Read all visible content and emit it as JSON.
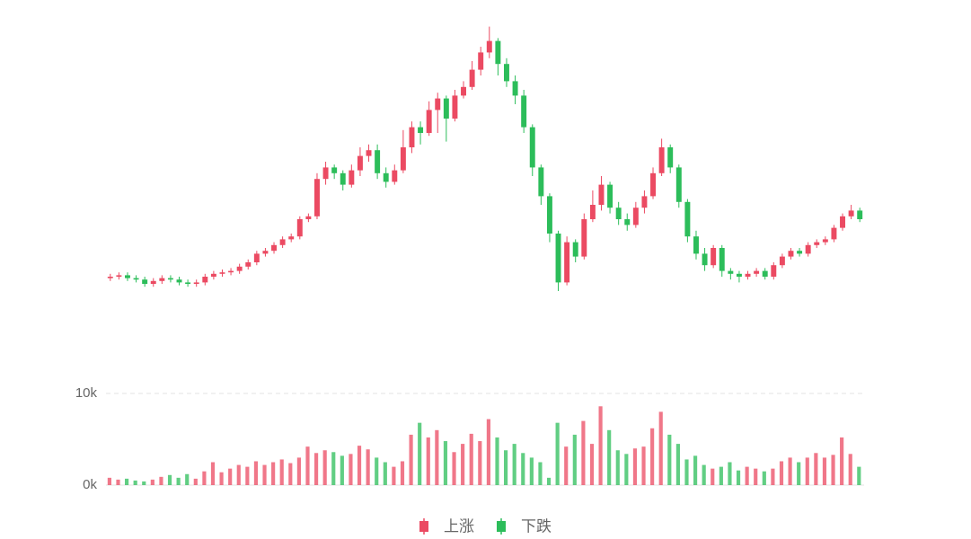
{
  "chart_data": {
    "type": "candlestick",
    "open": [
      9.5,
      10,
      10.5,
      9.5,
      9,
      7.5,
      8.5,
      9.5,
      9,
      8,
      7.5,
      8,
      10,
      11,
      11.5,
      12,
      13.5,
      15,
      18,
      19,
      21,
      23,
      24,
      30,
      31,
      44,
      48,
      46,
      42,
      47,
      52,
      54,
      46,
      43,
      47,
      55,
      62,
      60,
      68,
      72,
      65,
      73,
      76,
      82,
      88,
      92,
      84,
      78,
      73,
      62,
      48,
      38,
      25,
      8,
      22,
      17,
      30,
      35,
      42,
      34,
      30,
      28,
      34,
      38,
      46,
      55,
      48,
      36,
      24,
      18,
      14,
      20,
      12,
      11,
      10,
      11,
      12,
      10,
      14,
      17,
      19,
      18,
      21,
      22,
      23,
      27,
      31,
      33
    ],
    "close": [
      10,
      10.5,
      9.5,
      9,
      7.5,
      8.5,
      9.5,
      9,
      8,
      7.5,
      8,
      10,
      11,
      11.5,
      12,
      13.5,
      15,
      18,
      19,
      21,
      23,
      24,
      30,
      31,
      44,
      48,
      46,
      42,
      47,
      52,
      54,
      46,
      43,
      47,
      55,
      62,
      60,
      68,
      72,
      65,
      73,
      76,
      82,
      88,
      92,
      84,
      78,
      73,
      62,
      48,
      38,
      25,
      8,
      22,
      17,
      30,
      35,
      42,
      34,
      30,
      28,
      34,
      38,
      46,
      55,
      48,
      36,
      24,
      18,
      14,
      20,
      12,
      11,
      10,
      11,
      12,
      10,
      14,
      17,
      19,
      18,
      21,
      22,
      23,
      27,
      31,
      33,
      30
    ],
    "low": [
      8.5,
      9,
      8.5,
      8,
      6.5,
      6.5,
      7.5,
      8,
      7,
      6.5,
      6.5,
      7,
      9,
      10,
      10.5,
      11,
      12.5,
      14,
      17,
      18,
      20,
      22,
      23,
      29,
      30,
      42,
      44,
      40,
      41,
      45,
      50,
      44,
      41,
      42,
      46,
      53,
      56,
      59,
      60,
      57,
      64,
      72,
      75,
      80,
      86,
      80,
      76,
      70,
      60,
      45,
      35,
      22,
      5,
      7,
      15,
      16,
      29,
      33,
      32,
      28,
      26,
      27,
      32,
      37,
      45,
      46,
      34,
      22,
      16,
      12,
      13,
      10,
      9,
      8,
      9,
      10,
      9,
      9,
      13,
      16,
      17,
      17,
      20,
      21,
      22,
      26,
      30,
      29
    ],
    "high": [
      11,
      11.5,
      11.5,
      10.5,
      10,
      9.5,
      10.5,
      10.5,
      10,
      9,
      9,
      11,
      12,
      12.5,
      13,
      14.5,
      16,
      19,
      20,
      22,
      24,
      25,
      31,
      32,
      46,
      50,
      49,
      47,
      49,
      55,
      56,
      56,
      48,
      49,
      61,
      64,
      64,
      71,
      74,
      73,
      75,
      78,
      85,
      90,
      97,
      93,
      86,
      80,
      75,
      63,
      49,
      39,
      26,
      24,
      23,
      32,
      40,
      45,
      43,
      36,
      32,
      36,
      40,
      48,
      58,
      56,
      49,
      37,
      26,
      20,
      21,
      21,
      13,
      12,
      12,
      13,
      13,
      15,
      18,
      20,
      20,
      22,
      23,
      24,
      28,
      32,
      35,
      34
    ],
    "volume": [
      800,
      600,
      700,
      500,
      400,
      600,
      900,
      1100,
      800,
      1200,
      700,
      1500,
      2500,
      1400,
      1800,
      2200,
      2000,
      2600,
      2200,
      2500,
      2800,
      2400,
      3000,
      4200,
      3500,
      3800,
      3600,
      3200,
      3400,
      4300,
      3900,
      3000,
      2500,
      2000,
      2600,
      5500,
      6800,
      5200,
      6000,
      4800,
      3600,
      4500,
      5600,
      4800,
      7200,
      5200,
      3800,
      4500,
      3500,
      3000,
      2500,
      800,
      6800,
      4200,
      5500,
      7000,
      4500,
      8600,
      6000,
      3800,
      3400,
      4000,
      4200,
      6200,
      8000,
      5500,
      4500,
      2800,
      3200,
      2200,
      1800,
      2000,
      2500,
      1600,
      2000,
      1800,
      1500,
      1800,
      2600,
      3000,
      2500,
      3000,
      3500,
      3000,
      3300,
      5200,
      3400,
      2000
    ],
    "ylim": [
      0,
      100
    ],
    "volume_ylim": [
      0,
      10000
    ],
    "volume_yticks": [
      {
        "value": 0,
        "label": "0k"
      },
      {
        "value": 10000,
        "label": "10k"
      }
    ],
    "grid": true,
    "legend": [
      {
        "name": "上涨",
        "color": "#eb4a62"
      },
      {
        "name": "下跌",
        "color": "#2cbd5a"
      }
    ]
  }
}
